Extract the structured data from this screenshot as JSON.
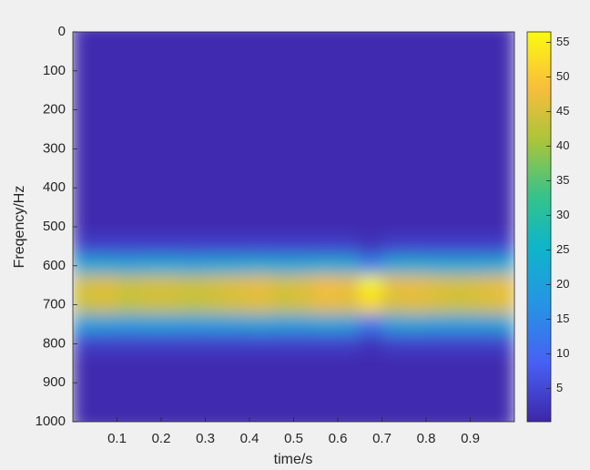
{
  "chart_data": {
    "type": "heatmap",
    "xlabel": "time/s",
    "ylabel": "Freqency/Hz",
    "xlim": [
      0,
      1
    ],
    "xticks": [
      0.1,
      0.2,
      0.3,
      0.4,
      0.5,
      0.6,
      0.7,
      0.8,
      0.9
    ],
    "ylim": [
      1000,
      0
    ],
    "yticks": [
      0,
      100,
      200,
      300,
      400,
      500,
      600,
      700,
      800,
      900,
      1000
    ],
    "x": [
      0.025,
      0.075,
      0.125,
      0.175,
      0.225,
      0.275,
      0.325,
      0.375,
      0.425,
      0.475,
      0.525,
      0.575,
      0.625,
      0.675,
      0.725,
      0.775,
      0.825,
      0.875,
      0.925,
      0.975
    ],
    "y": [
      0,
      50,
      100,
      150,
      200,
      250,
      300,
      350,
      400,
      450,
      500,
      550,
      600,
      650,
      700,
      750,
      800,
      850,
      900,
      950,
      1000
    ],
    "z": [
      [
        1,
        1,
        1,
        1,
        1,
        1,
        1,
        1,
        1,
        1,
        1,
        1,
        1,
        1,
        1,
        1,
        1,
        1,
        1,
        1
      ],
      [
        1,
        1,
        1,
        1,
        1,
        1,
        1,
        1,
        1,
        1,
        1,
        1,
        1,
        1,
        1,
        1,
        1,
        1,
        1,
        1
      ],
      [
        1,
        1,
        1,
        1,
        1,
        1,
        1,
        1,
        1,
        1,
        1,
        1,
        1,
        1,
        1,
        1,
        1,
        1,
        1,
        1
      ],
      [
        1,
        1,
        1,
        1,
        1,
        1,
        1,
        1,
        1,
        1,
        1,
        1,
        1,
        1,
        1,
        1,
        1,
        1,
        1,
        1
      ],
      [
        1,
        1,
        1,
        1,
        1,
        1,
        1,
        1,
        1,
        1,
        1,
        1,
        1,
        1,
        1,
        1,
        1,
        1,
        1,
        1
      ],
      [
        1,
        1,
        1,
        1,
        1,
        1,
        1,
        1,
        1,
        1,
        1,
        1,
        1,
        1,
        1,
        1,
        1,
        1,
        1,
        1
      ],
      [
        1,
        1,
        1,
        1,
        1,
        1,
        1,
        1,
        1,
        1,
        1,
        1,
        1,
        1,
        1,
        1,
        1,
        1,
        1,
        1
      ],
      [
        1,
        1,
        1,
        1,
        1,
        1,
        1,
        1,
        1,
        1,
        1,
        1,
        1,
        1,
        1,
        1,
        1,
        1,
        1,
        1
      ],
      [
        1,
        1,
        1,
        1,
        1,
        1,
        1,
        1,
        1,
        1,
        1,
        1,
        1,
        1,
        1,
        1,
        1,
        1,
        1,
        1
      ],
      [
        1,
        1,
        1,
        1,
        1,
        1,
        1,
        1,
        1,
        1,
        1,
        1,
        1,
        1,
        1,
        1,
        1,
        1,
        1,
        1
      ],
      [
        1,
        1,
        1,
        1,
        1,
        1,
        1,
        1,
        1,
        1,
        1,
        1,
        1,
        1,
        1,
        1,
        1,
        1,
        1,
        1
      ],
      [
        4,
        4,
        4,
        4,
        4,
        4,
        4,
        4,
        4,
        4,
        4,
        4,
        4,
        2,
        4,
        4,
        4,
        4,
        4,
        4
      ],
      [
        22,
        22,
        21,
        22,
        22,
        21,
        22,
        22,
        23,
        22,
        22,
        23,
        22,
        14,
        22,
        23,
        22,
        22,
        22,
        23
      ],
      [
        45,
        46,
        44,
        45,
        45,
        44,
        45,
        46,
        47,
        45,
        46,
        48,
        47,
        56,
        47,
        47,
        46,
        45,
        46,
        47
      ],
      [
        44,
        45,
        43,
        44,
        44,
        43,
        44,
        45,
        46,
        44,
        45,
        47,
        46,
        52,
        45,
        46,
        45,
        44,
        45,
        46
      ],
      [
        20,
        20,
        19,
        20,
        20,
        19,
        20,
        20,
        21,
        20,
        20,
        21,
        20,
        12,
        20,
        21,
        20,
        20,
        20,
        21
      ],
      [
        4,
        4,
        4,
        4,
        4,
        4,
        4,
        4,
        4,
        4,
        4,
        4,
        4,
        2,
        4,
        4,
        4,
        4,
        4,
        4
      ],
      [
        1,
        1,
        1,
        1,
        1,
        1,
        1,
        1,
        1,
        1,
        1,
        1,
        1,
        1,
        1,
        1,
        1,
        1,
        1,
        1
      ],
      [
        1,
        1,
        1,
        1,
        1,
        1,
        1,
        1,
        1,
        1,
        1,
        1,
        1,
        1,
        1,
        1,
        1,
        1,
        1,
        1
      ],
      [
        1,
        1,
        1,
        1,
        1,
        1,
        1,
        1,
        1,
        1,
        1,
        1,
        1,
        1,
        1,
        1,
        1,
        1,
        1,
        1
      ],
      [
        1,
        1,
        1,
        1,
        1,
        1,
        1,
        1,
        1,
        1,
        1,
        1,
        1,
        1,
        1,
        1,
        1,
        1,
        1,
        1
      ]
    ],
    "colormap": "parula",
    "clim": [
      0.2,
      56.5
    ],
    "cticks": [
      5,
      10,
      15,
      20,
      25,
      30,
      35,
      40,
      45,
      50,
      55
    ]
  }
}
